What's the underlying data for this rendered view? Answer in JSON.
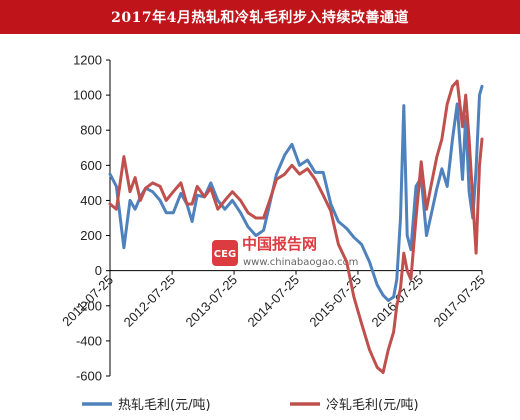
{
  "title": "2017年4月热轧和冷轧毛利步入持续改善通道",
  "watermark": {
    "logo_text": "CEG",
    "name": "中国报告网",
    "url": "www.chinabaogao.com"
  },
  "colors": {
    "title_bg": "#c0141b",
    "hot_rolled": "#4f81bd",
    "cold_rolled": "#c0504d",
    "watermark_red": "#d9262c"
  },
  "chart_data": {
    "type": "line",
    "title": "2017年4月热轧和冷轧毛利步入持续改善通道",
    "xlabel": "",
    "ylabel": "",
    "ylim": [
      -600,
      1200
    ],
    "yticks": [
      1200,
      1000,
      800,
      600,
      400,
      200,
      0,
      -200,
      -400,
      -600
    ],
    "ytick_labels": [
      "1200",
      "1000",
      "800",
      "600",
      "400",
      "200",
      "0",
      "-200",
      "-400",
      "-600"
    ],
    "xlim": [
      "2011-07-25",
      "2017-07-25"
    ],
    "xticks": [
      "2011-07-25",
      "2012-07-25",
      "2013-07-25",
      "2014-07-25",
      "2015-07-25",
      "2016-07-25",
      "2017-07-25"
    ],
    "grid": false,
    "legend": "bottom",
    "series": [
      {
        "name": "热轧毛利(元/吨)",
        "color": "#4f81bd",
        "x": [
          "2011-07-25",
          "2011-09-01",
          "2011-10-15",
          "2011-11-20",
          "2011-12-20",
          "2012-01-20",
          "2012-02-20",
          "2012-04-01",
          "2012-05-15",
          "2012-06-20",
          "2012-08-01",
          "2012-09-15",
          "2012-10-20",
          "2012-11-20",
          "2012-12-20",
          "2013-02-01",
          "2013-03-10",
          "2013-04-20",
          "2013-06-01",
          "2013-07-15",
          "2013-09-01",
          "2013-10-15",
          "2013-12-01",
          "2014-01-15",
          "2014-02-20",
          "2014-04-01",
          "2014-05-20",
          "2014-07-01",
          "2014-08-15",
          "2014-10-01",
          "2014-11-15",
          "2015-01-01",
          "2015-02-15",
          "2015-04-01",
          "2015-05-20",
          "2015-07-01",
          "2015-08-15",
          "2015-10-01",
          "2015-11-15",
          "2015-12-20",
          "2016-01-20",
          "2016-02-20",
          "2016-03-10",
          "2016-04-01",
          "2016-04-20",
          "2016-05-10",
          "2016-06-01",
          "2016-07-01",
          "2016-08-01",
          "2016-09-01",
          "2016-10-01",
          "2016-11-01",
          "2016-12-01",
          "2017-01-01",
          "2017-02-01",
          "2017-03-01",
          "2017-04-01",
          "2017-04-20",
          "2017-05-10",
          "2017-06-01",
          "2017-06-20",
          "2017-07-10",
          "2017-07-25"
        ],
        "values": [
          550,
          480,
          130,
          400,
          350,
          420,
          470,
          450,
          400,
          330,
          330,
          440,
          380,
          280,
          430,
          420,
          500,
          400,
          350,
          400,
          330,
          250,
          200,
          230,
          380,
          550,
          660,
          720,
          600,
          630,
          560,
          560,
          380,
          280,
          240,
          190,
          150,
          50,
          -80,
          -140,
          -170,
          -150,
          -50,
          300,
          940,
          200,
          120,
          480,
          530,
          200,
          330,
          470,
          580,
          480,
          750,
          950,
          520,
          880,
          450,
          300,
          580,
          1000,
          1050
        ]
      },
      {
        "name": "冷轧毛利(元/吨)",
        "color": "#c0504d",
        "x": [
          "2011-07-25",
          "2011-09-01",
          "2011-10-15",
          "2011-11-20",
          "2011-12-20",
          "2012-01-20",
          "2012-02-20",
          "2012-04-01",
          "2012-05-15",
          "2012-06-20",
          "2012-08-01",
          "2012-09-15",
          "2012-10-20",
          "2012-11-20",
          "2012-12-20",
          "2013-02-01",
          "2013-03-10",
          "2013-04-20",
          "2013-06-01",
          "2013-07-15",
          "2013-09-01",
          "2013-10-15",
          "2013-12-01",
          "2014-01-15",
          "2014-02-20",
          "2014-04-01",
          "2014-05-20",
          "2014-07-01",
          "2014-08-15",
          "2014-10-01",
          "2014-11-15",
          "2015-01-01",
          "2015-02-15",
          "2015-04-01",
          "2015-05-20",
          "2015-07-01",
          "2015-08-15",
          "2015-10-01",
          "2015-11-15",
          "2015-12-20",
          "2016-01-20",
          "2016-02-20",
          "2016-03-10",
          "2016-04-01",
          "2016-04-20",
          "2016-05-10",
          "2016-06-01",
          "2016-07-01",
          "2016-08-01",
          "2016-09-01",
          "2016-10-01",
          "2016-11-01",
          "2016-12-01",
          "2017-01-01",
          "2017-02-01",
          "2017-03-01",
          "2017-04-01",
          "2017-04-20",
          "2017-05-10",
          "2017-06-01",
          "2017-06-20",
          "2017-07-10",
          "2017-07-25"
        ],
        "values": [
          380,
          350,
          650,
          450,
          530,
          400,
          470,
          500,
          480,
          400,
          450,
          500,
          380,
          380,
          480,
          420,
          470,
          350,
          400,
          450,
          400,
          330,
          300,
          300,
          400,
          520,
          550,
          600,
          550,
          580,
          520,
          430,
          340,
          150,
          50,
          -150,
          -300,
          -450,
          -550,
          -580,
          -450,
          -350,
          -200,
          -100,
          100,
          0,
          -50,
          300,
          620,
          350,
          500,
          650,
          750,
          950,
          1050,
          1080,
          820,
          1000,
          750,
          400,
          100,
          600,
          750
        ]
      }
    ]
  }
}
